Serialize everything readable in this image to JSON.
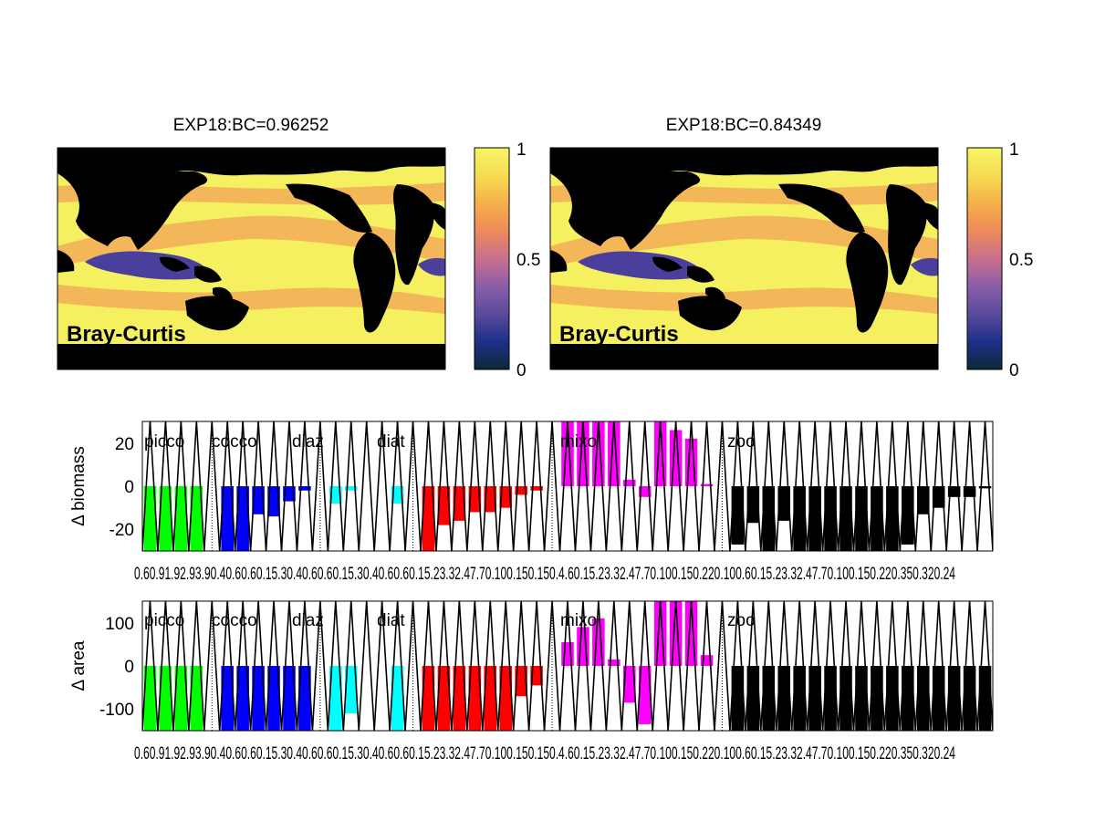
{
  "colors": {
    "land": "#000000",
    "ocean_high": "#f5f060",
    "ocean_mid": "#f2a356",
    "ocean_low": "#4a3f9a",
    "picco": "#00ff00",
    "cocco": "#0000ff",
    "diaz": "#00ffff",
    "diat": "#ff0000",
    "mixo": "#ff00ff",
    "zoo": "#000000",
    "colorbar_stops": [
      "#0a2a35",
      "#1e2f8a",
      "#5a4a9c",
      "#8a5ea8",
      "#c96f8d",
      "#ee8a5a",
      "#f5b04a",
      "#f6dc52",
      "#f7f564"
    ]
  },
  "chart_data": [
    {
      "type": "heatmap",
      "title": "EXP18:BC=0.96252",
      "label": "Bray-Curtis",
      "colorbar": {
        "range": [
          0,
          1
        ],
        "ticks": [
          "0",
          "0.5",
          "1"
        ]
      }
    },
    {
      "type": "heatmap",
      "title": "EXP18:BC=0.84349",
      "label": "Bray-Curtis",
      "colorbar": {
        "range": [
          0,
          1
        ],
        "ticks": [
          "0",
          "0.5",
          "1"
        ]
      }
    },
    {
      "type": "bar",
      "ylabel": "Δ biomass",
      "ylim": [
        -30,
        30
      ],
      "yticks": [
        "20",
        "0",
        "-20"
      ],
      "groups": [
        "picco",
        "cocco",
        "diaz",
        "diat",
        "mixo",
        "zoo"
      ],
      "xtick_text": "0.60.91.92.93.90.40.60.60.15.30.40.60.60.15.30.40.60.60.15.23.32.47.70.100.150.150.4.60.15.23.32.47.70.100.150.220.100.60.15.23.32.47.70.100.150.220.350.320.24",
      "values": {
        "picco": [
          -30,
          -30,
          -30,
          -30
        ],
        "cocco": [
          -30,
          -30,
          -13,
          -14,
          -7,
          -2
        ],
        "diaz": [
          -8,
          -2,
          0,
          0,
          -8
        ],
        "diat": [
          -30,
          -18,
          -16,
          -12,
          -12,
          -10,
          -4,
          -2
        ],
        "mixo": [
          30,
          30,
          30,
          30,
          3,
          -5,
          30,
          26,
          22,
          1
        ],
        "zoo": [
          -27,
          -17,
          -30,
          -16,
          -30,
          -30,
          -30,
          -30,
          -30,
          -30,
          -30,
          -27,
          -13,
          -10,
          -5,
          -5,
          -1
        ]
      }
    },
    {
      "type": "bar",
      "ylabel": "Δ area",
      "ylim": [
        -150,
        150
      ],
      "yticks": [
        "100",
        "0",
        "-100"
      ],
      "groups": [
        "picco",
        "cocco",
        "diaz",
        "diat",
        "mixo",
        "zoo"
      ],
      "xtick_text": "0.60.91.92.93.90.40.60.60.15.30.40.60.60.15.30.40.60.60.15.23.32.47.70.100.150.150.4.60.15.23.32.47.70.100.150.220.100.60.15.23.32.47.70.100.150.220.350.320.24",
      "values": {
        "picco": [
          -150,
          -150,
          -150,
          -150
        ],
        "cocco": [
          -150,
          -150,
          -150,
          -150,
          -150,
          -150
        ],
        "diaz": [
          -150,
          -110,
          0,
          0,
          -150
        ],
        "diat": [
          -150,
          -150,
          -150,
          -150,
          -150,
          -150,
          -70,
          -45
        ],
        "mixo": [
          55,
          90,
          110,
          15,
          -85,
          -135,
          150,
          150,
          150,
          25
        ],
        "zoo": [
          -150,
          -150,
          -150,
          -150,
          -150,
          -150,
          -150,
          -150,
          -150,
          -150,
          -150,
          -150,
          -150,
          -150,
          -150,
          -150,
          -150
        ]
      }
    }
  ]
}
